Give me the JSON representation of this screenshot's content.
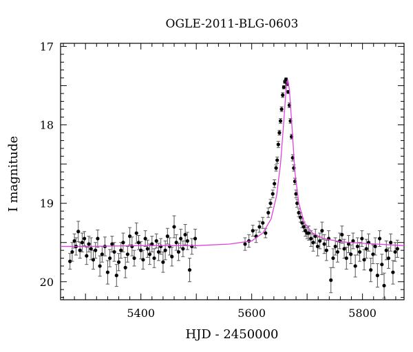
{
  "chart_data": {
    "type": "scatter",
    "title": "OGLE-2011-BLG-0603",
    "xlabel": "HJD - 2450000",
    "ylabel": "I magnitude",
    "xlim": [
      5255,
      5875
    ],
    "ylim": [
      20.23,
      16.96
    ],
    "y_inverted": true,
    "x_ticks": [
      5400,
      5600,
      5800
    ],
    "x_tick_labels": [
      "5400",
      "5600",
      "5800"
    ],
    "y_ticks": [
      17,
      18,
      19,
      20
    ],
    "y_tick_labels": [
      "17",
      "18",
      "19",
      "20"
    ],
    "grid": false,
    "legend": "none",
    "colors": {
      "points": "#000000",
      "model": "#e040e0",
      "axes": "#000000"
    },
    "model": {
      "name": "",
      "baseline_mag": 19.54,
      "peak_mag": 17.42,
      "peak_hjd": 5665,
      "x": [
        5255,
        5300,
        5400,
        5500,
        5560,
        5600,
        5620,
        5635,
        5645,
        5652,
        5658,
        5662,
        5665,
        5668,
        5672,
        5678,
        5685,
        5695,
        5710,
        5730,
        5760,
        5800,
        5875
      ],
      "y": [
        19.55,
        19.55,
        19.54,
        19.54,
        19.52,
        19.48,
        19.38,
        19.2,
        18.9,
        18.5,
        17.95,
        17.55,
        17.42,
        17.55,
        17.95,
        18.6,
        19.0,
        19.25,
        19.38,
        19.45,
        19.49,
        19.51,
        19.54
      ]
    },
    "series": [
      {
        "x": [
          5272,
          5276,
          5280,
          5283,
          5287,
          5290,
          5294,
          5298,
          5302,
          5306,
          5310,
          5314,
          5318,
          5322,
          5326,
          5330,
          5335,
          5340,
          5344,
          5348,
          5352,
          5356,
          5360,
          5364,
          5368,
          5372,
          5376,
          5380,
          5384,
          5388,
          5392,
          5396,
          5400,
          5404,
          5408,
          5412,
          5416,
          5420,
          5424,
          5428,
          5432,
          5436,
          5440,
          5444,
          5448,
          5452,
          5456,
          5460,
          5464,
          5468,
          5472,
          5476,
          5480,
          5484,
          5488,
          5492,
          5498
        ],
        "y": [
          19.74,
          19.62,
          19.48,
          19.55,
          19.36,
          19.6,
          19.5,
          19.45,
          19.67,
          19.52,
          19.58,
          19.72,
          19.6,
          19.45,
          19.8,
          19.65,
          19.55,
          19.88,
          19.7,
          19.52,
          19.62,
          19.92,
          19.75,
          19.6,
          19.5,
          19.82,
          19.65,
          19.42,
          19.55,
          19.7,
          19.38,
          19.5,
          19.6,
          19.72,
          19.45,
          19.58,
          19.65,
          19.52,
          19.7,
          19.48,
          19.62,
          19.55,
          19.75,
          19.6,
          19.42,
          19.55,
          19.68,
          19.3,
          19.5,
          19.62,
          19.45,
          19.58,
          19.4,
          19.48,
          19.85,
          19.55,
          19.45
        ],
        "yerr": [
          0.1,
          0.12,
          0.09,
          0.11,
          0.13,
          0.1,
          0.12,
          0.09,
          0.11,
          0.1,
          0.14,
          0.12,
          0.1,
          0.11,
          0.13,
          0.1,
          0.12,
          0.15,
          0.11,
          0.1,
          0.12,
          0.14,
          0.11,
          0.1,
          0.12,
          0.13,
          0.1,
          0.11,
          0.12,
          0.1,
          0.13,
          0.09,
          0.11,
          0.12,
          0.1,
          0.11,
          0.13,
          0.1,
          0.12,
          0.09,
          0.11,
          0.1,
          0.13,
          0.12,
          0.1,
          0.11,
          0.12,
          0.14,
          0.1,
          0.11,
          0.12,
          0.1,
          0.13,
          0.11,
          0.15,
          0.1,
          0.12
        ]
      },
      {
        "x": [
          5588,
          5595,
          5602,
          5608,
          5614,
          5620,
          5625,
          5630,
          5634,
          5638,
          5641,
          5644,
          5646,
          5648,
          5650,
          5652,
          5654,
          5656,
          5658,
          5660,
          5662,
          5664,
          5666,
          5668,
          5670,
          5672,
          5674,
          5676,
          5678,
          5680,
          5682,
          5685,
          5688,
          5691,
          5694,
          5697,
          5700
        ],
        "y": [
          19.52,
          19.48,
          19.35,
          19.42,
          19.3,
          19.25,
          19.38,
          19.12,
          19.0,
          18.88,
          18.75,
          18.55,
          18.45,
          18.25,
          18.1,
          17.95,
          17.8,
          17.62,
          17.52,
          17.45,
          17.42,
          17.48,
          17.58,
          17.75,
          17.95,
          18.15,
          18.42,
          18.55,
          18.72,
          18.88,
          19.0,
          19.12,
          19.18,
          19.25,
          19.3,
          19.35,
          19.38
        ],
        "yerr": [
          0.08,
          0.08,
          0.07,
          0.08,
          0.07,
          0.07,
          0.06,
          0.06,
          0.05,
          0.05,
          0.05,
          0.04,
          0.04,
          0.04,
          0.03,
          0.03,
          0.03,
          0.03,
          0.02,
          0.02,
          0.02,
          0.02,
          0.02,
          0.03,
          0.03,
          0.03,
          0.04,
          0.04,
          0.04,
          0.05,
          0.05,
          0.05,
          0.06,
          0.06,
          0.06,
          0.07,
          0.07
        ]
      },
      {
        "x": [
          5703,
          5707,
          5711,
          5715,
          5719,
          5723,
          5727,
          5731,
          5735,
          5739,
          5743,
          5747,
          5751,
          5755,
          5759,
          5763,
          5767,
          5771,
          5775,
          5779,
          5783,
          5787,
          5791,
          5795,
          5799,
          5803,
          5807,
          5811,
          5815,
          5819,
          5823,
          5827,
          5831,
          5835,
          5839,
          5843,
          5847,
          5851,
          5855,
          5859,
          5863
        ],
        "y": [
          19.38,
          19.45,
          19.5,
          19.42,
          19.55,
          19.48,
          19.35,
          19.52,
          19.6,
          19.45,
          19.98,
          19.7,
          19.55,
          19.62,
          19.48,
          19.4,
          19.58,
          19.7,
          19.52,
          19.65,
          19.48,
          19.8,
          19.55,
          19.62,
          19.45,
          19.72,
          19.58,
          19.5,
          19.85,
          19.65,
          19.55,
          19.92,
          19.45,
          19.78,
          20.05,
          19.6,
          19.7,
          19.5,
          19.88,
          19.62,
          19.58
        ],
        "yerr": [
          0.09,
          0.1,
          0.11,
          0.09,
          0.12,
          0.1,
          0.11,
          0.12,
          0.13,
          0.1,
          0.16,
          0.12,
          0.11,
          0.13,
          0.1,
          0.11,
          0.12,
          0.14,
          0.11,
          0.12,
          0.1,
          0.14,
          0.11,
          0.12,
          0.1,
          0.13,
          0.12,
          0.11,
          0.15,
          0.12,
          0.11,
          0.15,
          0.1,
          0.13,
          0.16,
          0.12,
          0.13,
          0.11,
          0.15,
          0.12,
          0.11
        ]
      }
    ]
  }
}
